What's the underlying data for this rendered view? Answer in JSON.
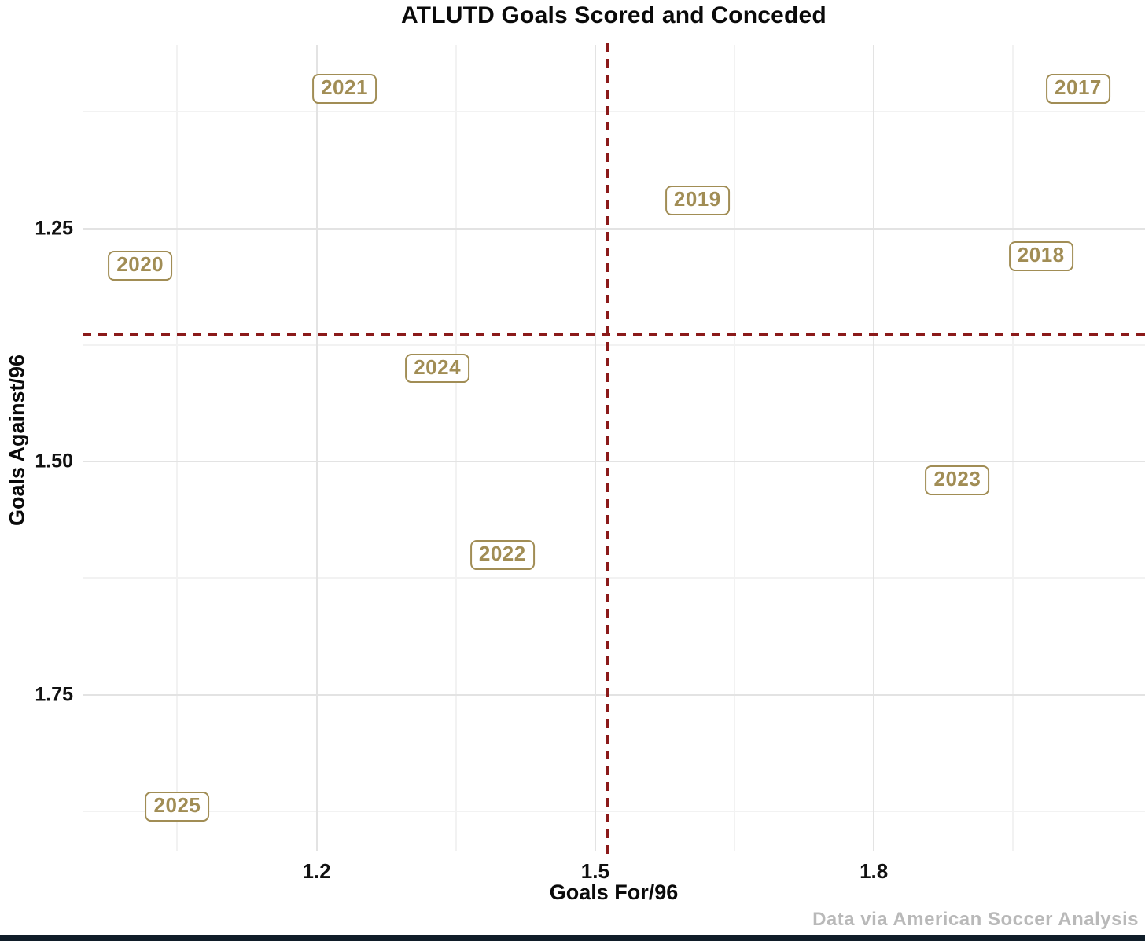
{
  "title": "ATLUTD Goals Scored and Conceded",
  "caption": "Data via American Soccer Analysis",
  "colors": {
    "label_gold": "#a18d55",
    "crosshair_red": "#8b1a1a",
    "grid_major": "#e3e3e3",
    "grid_minor": "#f2f2f2",
    "caption_gray": "#b9b9b9",
    "bottom_bar_navy": "#101d29",
    "text_black": "#0a0a0a"
  },
  "chart_data": {
    "type": "scatter",
    "title": "ATLUTD Goals Scored and Conceded",
    "xlabel": "Goals For/96",
    "ylabel": "Goals Against/96",
    "grid": true,
    "legend": "none",
    "point_style": "year text in gold rounded-rectangle boxes",
    "x_axis": {
      "min": 0.948,
      "max": 2.092,
      "ticks": [
        1.2,
        1.5,
        1.8
      ],
      "tick_labels": [
        "1.2",
        "1.5",
        "1.8"
      ],
      "minor_ticks": [
        1.05,
        1.35,
        1.65,
        1.95
      ]
    },
    "y_axis": {
      "min": 1.053,
      "max": 1.918,
      "inverted": true,
      "ticks": [
        1.25,
        1.5,
        1.75
      ],
      "tick_labels": [
        "1.25",
        "1.50",
        "1.75"
      ],
      "minor_ticks": [
        1.125,
        1.375,
        1.625,
        1.875
      ]
    },
    "points": [
      {
        "label": "2017",
        "x": 2.02,
        "y": 1.1
      },
      {
        "label": "2018",
        "x": 1.98,
        "y": 1.28
      },
      {
        "label": "2019",
        "x": 1.61,
        "y": 1.22
      },
      {
        "label": "2020",
        "x": 1.01,
        "y": 1.29
      },
      {
        "label": "2021",
        "x": 1.23,
        "y": 1.1
      },
      {
        "label": "2022",
        "x": 1.4,
        "y": 1.6
      },
      {
        "label": "2023",
        "x": 1.89,
        "y": 1.52
      },
      {
        "label": "2024",
        "x": 1.33,
        "y": 1.4
      },
      {
        "label": "2025",
        "x": 1.05,
        "y": 1.87
      }
    ],
    "reference_lines": {
      "vertical_x": 1.514,
      "horizontal_y": 1.363,
      "style": "dashed",
      "color": "#8b1a1a"
    }
  }
}
